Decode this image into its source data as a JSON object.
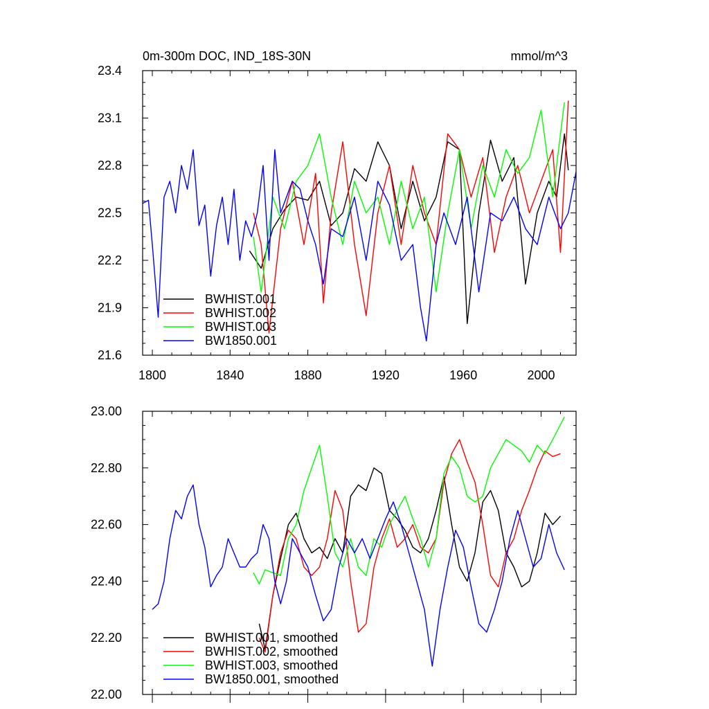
{
  "chart_data": [
    {
      "type": "line",
      "title_left": "0m-300m DOC, IND_18S-30N",
      "title_right": "mmol/m^3",
      "xlim": [
        1795,
        2018
      ],
      "ylim": [
        21.6,
        23.4
      ],
      "xticks": [
        1800,
        1840,
        1880,
        1920,
        1960,
        2000
      ],
      "xtick_labels": [
        "1800",
        "1840",
        "1880",
        "1920",
        "1960",
        "2000"
      ],
      "yticks": [
        21.6,
        21.9,
        22.2,
        22.5,
        22.8,
        23.1,
        23.4
      ],
      "ytick_labels": [
        "21.6",
        "21.9",
        "22.2",
        "22.5",
        "22.8",
        "23.1",
        "23.4"
      ],
      "legend_position": "bottom-left",
      "series": [
        {
          "name": "BWHIST.001",
          "color": "#000000",
          "x": [
            1850,
            1856,
            1862,
            1868,
            1874,
            1880,
            1886,
            1892,
            1898,
            1904,
            1910,
            1916,
            1922,
            1928,
            1934,
            1940,
            1946,
            1952,
            1958,
            1962,
            1968,
            1974,
            1980,
            1986,
            1992,
            1998,
            2004,
            2008,
            2012,
            2014
          ],
          "y": [
            22.26,
            22.15,
            22.4,
            22.52,
            22.6,
            22.58,
            22.7,
            22.42,
            22.5,
            22.78,
            22.7,
            22.95,
            22.8,
            22.4,
            22.7,
            22.45,
            22.6,
            22.95,
            22.9,
            21.8,
            22.5,
            22.96,
            22.7,
            22.85,
            22.05,
            22.5,
            22.7,
            22.6,
            23.0,
            22.77
          ]
        },
        {
          "name": "BWHIST.002",
          "color": "#ff0000",
          "x": [
            1852,
            1856,
            1860,
            1866,
            1872,
            1878,
            1884,
            1888,
            1892,
            1898,
            1904,
            1910,
            1916,
            1922,
            1928,
            1934,
            1940,
            1946,
            1952,
            1958,
            1964,
            1970,
            1976,
            1982,
            1988,
            1994,
            2000,
            2006,
            2010,
            2014
          ],
          "y": [
            22.5,
            22.3,
            21.74,
            22.4,
            22.7,
            22.3,
            22.75,
            21.93,
            22.5,
            22.95,
            22.3,
            21.85,
            22.5,
            22.8,
            22.3,
            22.8,
            22.5,
            22.3,
            23.0,
            22.9,
            22.6,
            22.85,
            22.25,
            22.6,
            22.8,
            22.5,
            22.7,
            22.9,
            22.25,
            23.21
          ]
        },
        {
          "name": "BWHIST.003",
          "color": "#00ff00",
          "x": [
            1852,
            1856,
            1862,
            1868,
            1874,
            1880,
            1886,
            1892,
            1898,
            1904,
            1910,
            1916,
            1922,
            1928,
            1934,
            1940,
            1946,
            1952,
            1958,
            1964,
            1970,
            1976,
            1982,
            1988,
            1994,
            2000,
            2006,
            2012
          ],
          "y": [
            22.35,
            22.0,
            22.6,
            22.4,
            22.7,
            22.8,
            23.0,
            22.6,
            22.3,
            22.7,
            22.5,
            22.6,
            22.3,
            22.7,
            22.4,
            22.6,
            22.0,
            22.5,
            22.9,
            22.4,
            22.8,
            22.6,
            22.9,
            22.75,
            22.85,
            23.15,
            22.6,
            23.2
          ]
        },
        {
          "name": "BW1850.001",
          "color": "#0000ff",
          "x": [
            1795,
            1798,
            1800,
            1803,
            1806,
            1809,
            1812,
            1815,
            1818,
            1821,
            1824,
            1827,
            1830,
            1833,
            1836,
            1839,
            1842,
            1845,
            1848,
            1851,
            1854,
            1857,
            1860,
            1863,
            1866,
            1869,
            1872,
            1876,
            1880,
            1884,
            1888,
            1892,
            1898,
            1904,
            1910,
            1916,
            1922,
            1928,
            1934,
            1938,
            1941,
            1946,
            1950,
            1956,
            1962,
            1968,
            1974,
            1980,
            1986,
            1992,
            1998,
            2004,
            2010,
            2014,
            2018
          ],
          "y": [
            22.56,
            22.58,
            22.3,
            21.84,
            22.6,
            22.7,
            22.5,
            22.8,
            22.65,
            22.9,
            22.42,
            22.55,
            22.1,
            22.42,
            22.6,
            22.3,
            22.65,
            22.2,
            22.45,
            22.35,
            22.5,
            22.8,
            22.2,
            22.9,
            22.5,
            22.6,
            22.7,
            22.65,
            22.45,
            22.3,
            22.05,
            22.4,
            22.35,
            22.6,
            22.2,
            22.7,
            22.55,
            22.2,
            22.3,
            21.9,
            21.69,
            22.3,
            22.5,
            22.3,
            22.6,
            22.0,
            22.5,
            22.45,
            22.6,
            22.4,
            22.3,
            22.6,
            22.4,
            22.5,
            22.76
          ]
        }
      ]
    },
    {
      "type": "line",
      "xlim": [
        1795,
        2018
      ],
      "ylim": [
        22.0,
        23.0
      ],
      "xticks": [
        1800,
        1840,
        1880,
        1920,
        1960,
        2000
      ],
      "yticks": [
        22.0,
        22.2,
        22.4,
        22.6,
        22.8,
        23.0
      ],
      "ytick_labels": [
        "22.00",
        "22.20",
        "22.40",
        "22.60",
        "22.80",
        "23.00"
      ],
      "legend_position": "bottom-left",
      "series": [
        {
          "name": "BWHIST.001, smoothed",
          "color": "#000000",
          "x": [
            1855,
            1858,
            1862,
            1866,
            1870,
            1874,
            1878,
            1882,
            1886,
            1890,
            1894,
            1898,
            1902,
            1906,
            1910,
            1914,
            1918,
            1922,
            1926,
            1930,
            1934,
            1938,
            1942,
            1946,
            1950,
            1954,
            1958,
            1962,
            1966,
            1970,
            1974,
            1978,
            1982,
            1986,
            1990,
            1994,
            1998,
            2002,
            2006,
            2010
          ],
          "x_note": "",
          "y": [
            22.25,
            22.16,
            22.35,
            22.48,
            22.6,
            22.64,
            22.55,
            22.5,
            22.52,
            22.48,
            22.55,
            22.5,
            22.7,
            22.74,
            22.72,
            22.8,
            22.78,
            22.65,
            22.62,
            22.58,
            22.52,
            22.5,
            22.55,
            22.65,
            22.77,
            22.6,
            22.45,
            22.4,
            22.5,
            22.68,
            22.72,
            22.65,
            22.5,
            22.45,
            22.38,
            22.4,
            22.5,
            22.64,
            22.6,
            22.63
          ]
        },
        {
          "name": "BWHIST.002, smoothed",
          "color": "#ff0000",
          "x": [
            1855,
            1858,
            1862,
            1866,
            1870,
            1874,
            1878,
            1882,
            1886,
            1890,
            1894,
            1898,
            1902,
            1906,
            1910,
            1914,
            1918,
            1922,
            1926,
            1930,
            1934,
            1938,
            1942,
            1946,
            1950,
            1954,
            1958,
            1962,
            1966,
            1970,
            1974,
            1978,
            1982,
            1986,
            1990,
            1994,
            1998,
            2002,
            2006,
            2010
          ],
          "y": [
            22.2,
            22.15,
            22.35,
            22.5,
            22.58,
            22.55,
            22.45,
            22.42,
            22.45,
            22.55,
            22.72,
            22.65,
            22.4,
            22.22,
            22.25,
            22.45,
            22.55,
            22.62,
            22.52,
            22.55,
            22.6,
            22.52,
            22.5,
            22.55,
            22.75,
            22.85,
            22.9,
            22.82,
            22.75,
            22.6,
            22.42,
            22.38,
            22.5,
            22.55,
            22.65,
            22.72,
            22.8,
            22.86,
            22.84,
            22.85
          ]
        },
        {
          "name": "BWHIST.003, smoothed",
          "color": "#00ff00",
          "x": [
            1852,
            1855,
            1858,
            1862,
            1866,
            1870,
            1874,
            1878,
            1882,
            1886,
            1890,
            1894,
            1898,
            1902,
            1906,
            1910,
            1914,
            1918,
            1922,
            1926,
            1930,
            1934,
            1938,
            1942,
            1946,
            1950,
            1954,
            1958,
            1962,
            1966,
            1970,
            1974,
            1978,
            1982,
            1986,
            1990,
            1994,
            1998,
            2002,
            2006,
            2012
          ],
          "y": [
            22.43,
            22.39,
            22.44,
            22.43,
            22.42,
            22.55,
            22.6,
            22.72,
            22.8,
            22.88,
            22.7,
            22.5,
            22.45,
            22.55,
            22.45,
            22.42,
            22.55,
            22.52,
            22.6,
            22.65,
            22.7,
            22.62,
            22.55,
            22.45,
            22.55,
            22.78,
            22.84,
            22.8,
            22.7,
            22.68,
            22.7,
            22.8,
            22.85,
            22.9,
            22.88,
            22.86,
            22.82,
            22.88,
            22.85,
            22.9,
            22.98
          ]
        },
        {
          "name": "BW1850.001, smoothed",
          "color": "#0000ff",
          "x": [
            1800,
            1803,
            1806,
            1809,
            1812,
            1815,
            1818,
            1821,
            1824,
            1827,
            1830,
            1833,
            1836,
            1839,
            1842,
            1845,
            1848,
            1851,
            1854,
            1857,
            1860,
            1863,
            1866,
            1869,
            1872,
            1876,
            1880,
            1884,
            1888,
            1892,
            1896,
            1900,
            1904,
            1908,
            1912,
            1916,
            1920,
            1924,
            1928,
            1932,
            1936,
            1940,
            1944,
            1948,
            1952,
            1956,
            1960,
            1964,
            1968,
            1972,
            1976,
            1980,
            1984,
            1988,
            1992,
            1996,
            2000,
            2004,
            2008,
            2012
          ],
          "y": [
            22.3,
            22.32,
            22.4,
            22.55,
            22.65,
            22.62,
            22.7,
            22.74,
            22.6,
            22.52,
            22.38,
            22.42,
            22.45,
            22.55,
            22.5,
            22.45,
            22.45,
            22.48,
            22.5,
            22.6,
            22.55,
            22.4,
            22.32,
            22.4,
            22.55,
            22.5,
            22.45,
            22.35,
            22.26,
            22.3,
            22.45,
            22.55,
            22.5,
            22.55,
            22.48,
            22.55,
            22.62,
            22.68,
            22.6,
            22.5,
            22.4,
            22.3,
            22.1,
            22.3,
            22.45,
            22.58,
            22.52,
            22.38,
            22.25,
            22.22,
            22.3,
            22.4,
            22.55,
            22.65,
            22.55,
            22.45,
            22.48,
            22.6,
            22.5,
            22.44
          ]
        }
      ]
    }
  ]
}
